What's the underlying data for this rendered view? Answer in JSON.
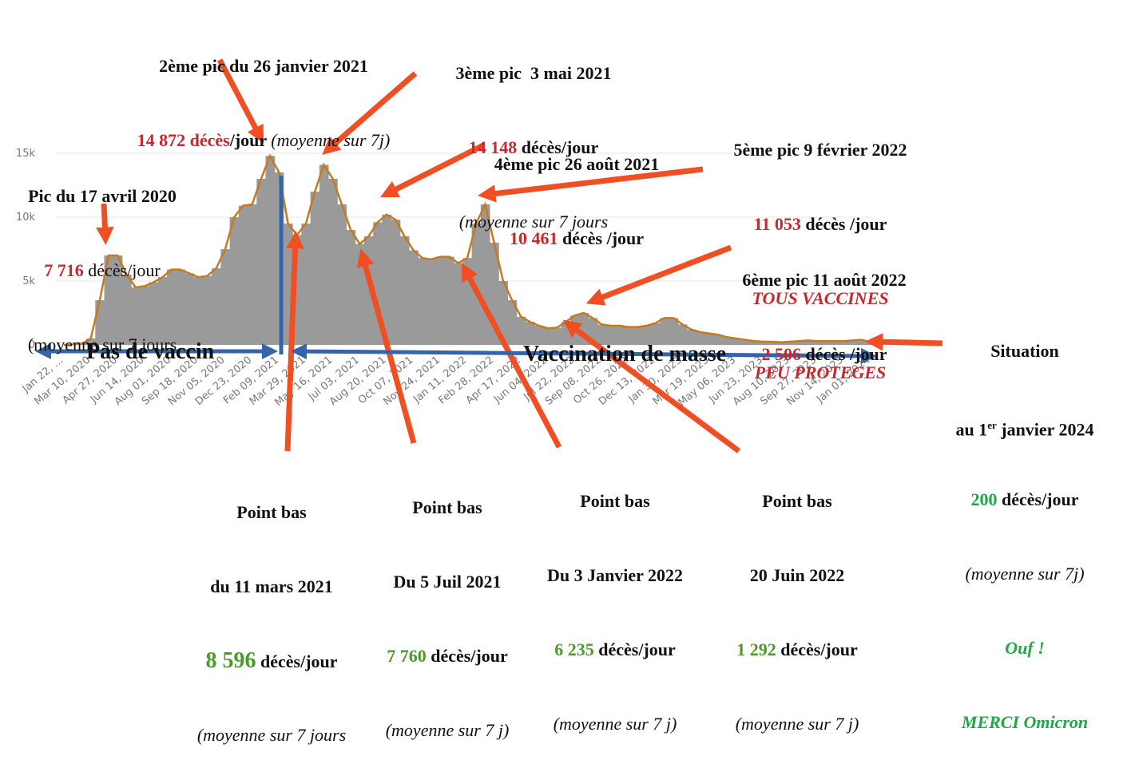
{
  "chart_data": {
    "type": "bar",
    "categories": [
      "Jan 22, …",
      null,
      null,
      "Mar 10, 2020",
      null,
      null,
      "Apr 27, 2020",
      null,
      null,
      "Jun 14, 2020",
      null,
      null,
      "Aug 01, 2020",
      null,
      null,
      "Sep 18, 2020",
      null,
      null,
      "Nov 05, 2020",
      null,
      null,
      "Dec 23, 2020",
      null,
      null,
      "Feb 09, 2021",
      null,
      null,
      "Mar 29, 2021",
      null,
      null,
      "May 16, 2021",
      null,
      null,
      "Jul 03, 2021",
      null,
      null,
      "Aug 20, 2021",
      null,
      null,
      "Oct 07, 2021",
      null,
      null,
      "Nov 24, 2021",
      null,
      null,
      "Jan 11, 2022",
      null,
      null,
      "Feb 28, 2022",
      null,
      null,
      "Apr 17, 2022",
      null,
      null,
      "Jun 04, 2022",
      null,
      null,
      "Jul 22, 2022",
      null,
      null,
      "Sep 08, 2022",
      null,
      null,
      "Oct 26, 2022",
      null,
      null,
      "Dec 13, 2022",
      null,
      null,
      "Jan 30, 2023",
      null,
      null,
      "Mar 19, 2023",
      null,
      null,
      "May 06, 2023",
      null,
      null,
      "Jun 23, 2023",
      null,
      null,
      "Aug 10, 2023",
      null,
      null,
      "Sep 27, 2023",
      null,
      null,
      "Nov 14, 2023",
      null,
      null,
      "Jan 01, 2024"
    ],
    "values": [
      0,
      50,
      100,
      500,
      3500,
      7000,
      7000,
      5500,
      4500,
      4600,
      4900,
      5300,
      5900,
      5900,
      5600,
      5300,
      5400,
      6000,
      7500,
      10000,
      10900,
      11000,
      13000,
      14800,
      13500,
      9500,
      8600,
      9500,
      12000,
      14100,
      13000,
      11000,
      9000,
      7900,
      8500,
      9600,
      10200,
      9800,
      8500,
      7400,
      6800,
      6700,
      6900,
      6900,
      6400,
      6800,
      9500,
      11000,
      8000,
      5000,
      3500,
      2200,
      1800,
      1500,
      1300,
      1350,
      1800,
      2300,
      2500,
      2100,
      1600,
      1500,
      1500,
      1400,
      1400,
      1500,
      1700,
      2100,
      2100,
      1600,
      1200,
      1000,
      900,
      800,
      600,
      500,
      400,
      300,
      250,
      250,
      200,
      250,
      300,
      350,
      300,
      300,
      300,
      300,
      350,
      400,
      200
    ],
    "color": "#9a9a9a",
    "line_color": "#c47a1f",
    "ylim": [
      0,
      17000
    ],
    "yticks": [
      0,
      {
        "value": 5000,
        "label": "5k"
      },
      {
        "value": 10000,
        "label": "10k"
      },
      {
        "value": 15000,
        "label": "15k"
      }
    ],
    "grid": true,
    "bands": [
      "Pas de vaccin",
      "Vaccination de masse"
    ],
    "annotations": [
      [
        "Pic du 17 avril 2020",
        "7 716",
        " décès/jour",
        "(moyenne sur 7 jours"
      ],
      [
        "2ème pic du 26 janvier 2021",
        "14 872 décès",
        "/jour ",
        "(moyenne sur 7j)"
      ],
      [
        "3ème pic  3 mai 2021",
        "14 148",
        " décès/jour",
        "(moyenne sur 7 jours"
      ],
      [
        "4ème pic 26 août 2021",
        "10 461",
        " décès /jour"
      ],
      [
        "5ème pic 9 février 2022",
        "11 053",
        " décès /jour",
        "TOUS VACCINES",
        "PEU PROTEGES"
      ],
      [
        "6ème pic 11 août 2022",
        "2 506",
        " décès /jour"
      ],
      [
        "Situation",
        "au 1",
        "er",
        " janvier 2024",
        "200",
        " décès/jour",
        "(moyenne sur 7j)",
        "Ouf !",
        "MERCI Omicron"
      ],
      [
        "Point bas",
        "du 11 mars 2021",
        "8 596",
        " décès/jour",
        "(moyenne sur 7 jours"
      ],
      [
        "Point bas",
        "Du 5 Juil 2021",
        "7 760",
        " décès/jour",
        "(moyenne sur 7 j)"
      ],
      [
        "Point bas",
        "Du 3 Janvier 2022",
        "6 235",
        " décès/jour",
        "(moyenne sur 7 j)"
      ],
      [
        "Point bas",
        "20 Juin 2022",
        "1 292",
        " décès/jour",
        "(moyenne sur 7 j)"
      ]
    ]
  }
}
